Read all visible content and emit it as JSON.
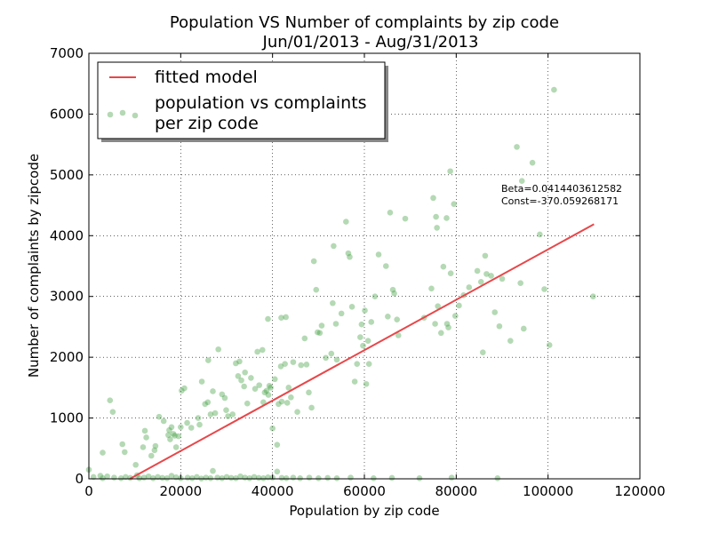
{
  "chart_data": {
    "type": "scatter",
    "title": "Population VS Number of complaints by zip code",
    "subtitle": "Jun/01/2013 - Aug/31/2013",
    "xlabel": "Population by zip code",
    "ylabel": "Number of complaints by zipcode",
    "xlim": [
      0,
      120000
    ],
    "ylim": [
      0,
      7000
    ],
    "xticks": [
      0,
      20000,
      40000,
      60000,
      80000,
      100000,
      120000
    ],
    "yticks": [
      0,
      1000,
      2000,
      3000,
      4000,
      5000,
      6000,
      7000
    ],
    "xtick_labels": [
      "0",
      "20000",
      "40000",
      "60000",
      "80000",
      "100000",
      "120000"
    ],
    "ytick_labels": [
      "0",
      "1000",
      "2000",
      "3000",
      "4000",
      "5000",
      "6000",
      "7000"
    ],
    "grid": true,
    "legend_position": "top-left",
    "annotations": [
      "Beta=0.0414403612582",
      "Const=-370.059268171"
    ],
    "colors": {
      "fit": "#e8474a",
      "points": "#3a9a3a"
    },
    "fitted_model": {
      "name": "fitted model",
      "beta": 0.0414403612582,
      "const": -370.059268171,
      "x": [
        8930,
        110000
      ]
    },
    "scatter": {
      "name_lines": [
        "population vs complaints",
        "per zip code"
      ],
      "points": [
        [
          3000,
          430
        ],
        [
          4600,
          1290
        ],
        [
          5200,
          1100
        ],
        [
          7300,
          570
        ],
        [
          7800,
          440
        ],
        [
          10200,
          230
        ],
        [
          11800,
          520
        ],
        [
          12200,
          790
        ],
        [
          12500,
          680
        ],
        [
          13600,
          380
        ],
        [
          14300,
          470
        ],
        [
          14500,
          540
        ],
        [
          15300,
          1020
        ],
        [
          16300,
          950
        ],
        [
          17300,
          720
        ],
        [
          17500,
          800
        ],
        [
          17700,
          650
        ],
        [
          18000,
          850
        ],
        [
          18400,
          740
        ],
        [
          18700,
          710
        ],
        [
          19000,
          520
        ],
        [
          19500,
          700
        ],
        [
          20000,
          850
        ],
        [
          20200,
          1450
        ],
        [
          20800,
          1490
        ],
        [
          21400,
          920
        ],
        [
          22300,
          840
        ],
        [
          23800,
          1000
        ],
        [
          24100,
          890
        ],
        [
          24600,
          1600
        ],
        [
          25300,
          1230
        ],
        [
          25900,
          1260
        ],
        [
          26000,
          1950
        ],
        [
          26500,
          1060
        ],
        [
          27000,
          1440
        ],
        [
          27500,
          1080
        ],
        [
          28200,
          2130
        ],
        [
          29000,
          1390
        ],
        [
          29600,
          1330
        ],
        [
          29900,
          1130
        ],
        [
          30300,
          1030
        ],
        [
          31300,
          1060
        ],
        [
          32000,
          1900
        ],
        [
          32500,
          1690
        ],
        [
          32800,
          1930
        ],
        [
          33200,
          1620
        ],
        [
          33800,
          1520
        ],
        [
          34000,
          1750
        ],
        [
          34500,
          1240
        ],
        [
          35300,
          1660
        ],
        [
          36200,
          1480
        ],
        [
          36700,
          2090
        ],
        [
          37100,
          1540
        ],
        [
          37800,
          2120
        ],
        [
          38000,
          1260
        ],
        [
          38300,
          1420
        ],
        [
          38700,
          1450
        ],
        [
          39000,
          2630
        ],
        [
          39100,
          1380
        ],
        [
          39300,
          1530
        ],
        [
          39600,
          1500
        ],
        [
          40000,
          830
        ],
        [
          40500,
          1640
        ],
        [
          41000,
          560
        ],
        [
          41300,
          1230
        ],
        [
          41800,
          1850
        ],
        [
          41900,
          2650
        ],
        [
          42000,
          1270
        ],
        [
          42700,
          1890
        ],
        [
          42900,
          2660
        ],
        [
          43200,
          1250
        ],
        [
          43500,
          1500
        ],
        [
          44000,
          1340
        ],
        [
          44500,
          1920
        ],
        [
          45400,
          1100
        ],
        [
          46200,
          1870
        ],
        [
          47000,
          2310
        ],
        [
          47400,
          1880
        ],
        [
          47900,
          1420
        ],
        [
          48500,
          1170
        ],
        [
          49000,
          3580
        ],
        [
          49500,
          3110
        ],
        [
          49800,
          2410
        ],
        [
          50300,
          2400
        ],
        [
          50700,
          2520
        ],
        [
          51600,
          1990
        ],
        [
          52800,
          2060
        ],
        [
          53100,
          2890
        ],
        [
          53300,
          3830
        ],
        [
          53800,
          2550
        ],
        [
          54000,
          1960
        ],
        [
          55000,
          2720
        ],
        [
          56000,
          4230
        ],
        [
          56500,
          3710
        ],
        [
          56800,
          3650
        ],
        [
          57300,
          2830
        ],
        [
          57900,
          1600
        ],
        [
          58400,
          1890
        ],
        [
          59100,
          2330
        ],
        [
          59400,
          2540
        ],
        [
          59700,
          2190
        ],
        [
          60100,
          2770
        ],
        [
          60400,
          1560
        ],
        [
          60800,
          2270
        ],
        [
          61000,
          1890
        ],
        [
          61500,
          2580
        ],
        [
          62300,
          3000
        ],
        [
          63100,
          3690
        ],
        [
          64700,
          3500
        ],
        [
          65100,
          2670
        ],
        [
          65600,
          4380
        ],
        [
          66200,
          3110
        ],
        [
          66500,
          3050
        ],
        [
          67100,
          2620
        ],
        [
          67400,
          2360
        ],
        [
          68900,
          4280
        ],
        [
          73000,
          2650
        ],
        [
          74600,
          3130
        ],
        [
          75000,
          4620
        ],
        [
          75400,
          2550
        ],
        [
          75600,
          4310
        ],
        [
          75800,
          4130
        ],
        [
          76000,
          2840
        ],
        [
          76700,
          2400
        ],
        [
          77200,
          3490
        ],
        [
          77900,
          4290
        ],
        [
          78000,
          2550
        ],
        [
          78300,
          2490
        ],
        [
          78700,
          5060
        ],
        [
          78800,
          3380
        ],
        [
          79500,
          4520
        ],
        [
          79800,
          2680
        ],
        [
          80600,
          2850
        ],
        [
          81600,
          3020
        ],
        [
          82800,
          3150
        ],
        [
          84600,
          3420
        ],
        [
          85400,
          3240
        ],
        [
          85800,
          2080
        ],
        [
          86300,
          3670
        ],
        [
          86600,
          3370
        ],
        [
          87600,
          3340
        ],
        [
          88400,
          2740
        ],
        [
          89400,
          2510
        ],
        [
          90000,
          3290
        ],
        [
          91800,
          2270
        ],
        [
          93200,
          5460
        ],
        [
          94000,
          3220
        ],
        [
          94300,
          4900
        ],
        [
          94700,
          2470
        ],
        [
          96600,
          5200
        ],
        [
          98200,
          4020
        ],
        [
          99200,
          3120
        ],
        [
          100300,
          2200
        ],
        [
          101300,
          6400
        ],
        [
          109800,
          3000
        ],
        [
          5000,
          5980
        ],
        [
          7300,
          6020
        ],
        [
          10000,
          5970
        ],
        [
          0,
          150
        ],
        [
          1000,
          30
        ],
        [
          2500,
          50
        ],
        [
          3000,
          10
        ],
        [
          4000,
          40
        ],
        [
          5500,
          20
        ],
        [
          7000,
          10
        ],
        [
          8000,
          30
        ],
        [
          9000,
          15
        ],
        [
          10500,
          60
        ],
        [
          11000,
          10
        ],
        [
          12000,
          20
        ],
        [
          13000,
          40
        ],
        [
          14000,
          10
        ],
        [
          15000,
          30
        ],
        [
          16000,
          15
        ],
        [
          17000,
          10
        ],
        [
          18000,
          50
        ],
        [
          19000,
          25
        ],
        [
          20000,
          10
        ],
        [
          21500,
          20
        ],
        [
          22500,
          10
        ],
        [
          23500,
          30
        ],
        [
          24500,
          5
        ],
        [
          25500,
          20
        ],
        [
          26500,
          10
        ],
        [
          27000,
          130
        ],
        [
          28000,
          20
        ],
        [
          29000,
          10
        ],
        [
          30000,
          30
        ],
        [
          31000,
          15
        ],
        [
          32000,
          10
        ],
        [
          33000,
          40
        ],
        [
          34000,
          20
        ],
        [
          35000,
          10
        ],
        [
          36000,
          30
        ],
        [
          37000,
          15
        ],
        [
          38000,
          10
        ],
        [
          39000,
          25
        ],
        [
          40000,
          20
        ],
        [
          41000,
          120
        ],
        [
          42000,
          15
        ],
        [
          43000,
          10
        ],
        [
          44500,
          20
        ],
        [
          46000,
          10
        ],
        [
          48000,
          20
        ],
        [
          50000,
          10
        ],
        [
          52000,
          15
        ],
        [
          54000,
          10
        ],
        [
          57000,
          20
        ],
        [
          62000,
          10
        ],
        [
          66000,
          15
        ],
        [
          72000,
          10
        ],
        [
          79000,
          20
        ],
        [
          89000,
          10
        ]
      ]
    }
  }
}
